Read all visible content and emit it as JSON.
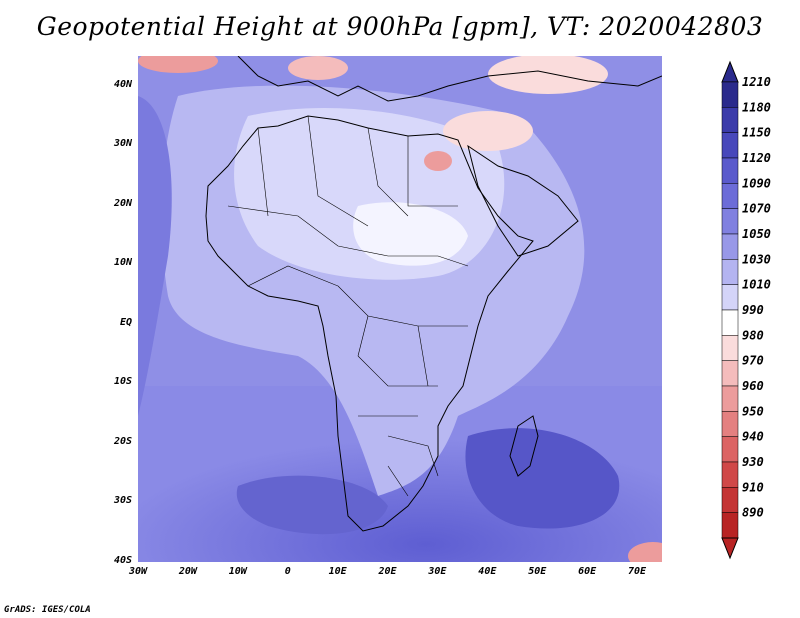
{
  "title": "Geopotential Height at 900hPa [gpm], VT: 2020042803",
  "footer": "GrADS: IGES/COLA",
  "axes": {
    "lat_labels": [
      "40N",
      "30N",
      "20N",
      "10N",
      "EQ",
      "10S",
      "20S",
      "30S",
      "40S"
    ],
    "lat_values": [
      40,
      30,
      20,
      10,
      0,
      -10,
      -20,
      -30,
      -40
    ],
    "lon_labels": [
      "30W",
      "20W",
      "10W",
      "0",
      "10E",
      "20E",
      "30E",
      "40E",
      "50E",
      "60E",
      "70E"
    ],
    "lon_values": [
      -30,
      -20,
      -10,
      0,
      10,
      20,
      30,
      40,
      50,
      60,
      70
    ],
    "lat_range": [
      -40,
      45
    ],
    "lon_range": [
      -30,
      75
    ]
  },
  "colorbar": {
    "levels": [
      "1210",
      "1180",
      "1150",
      "1120",
      "1090",
      "1070",
      "1050",
      "1030",
      "1010",
      "990",
      "980",
      "970",
      "960",
      "950",
      "940",
      "930",
      "910",
      "890"
    ],
    "colors": [
      "#2a2a8c",
      "#3b3baa",
      "#4848bb",
      "#5a5acc",
      "#6c6cd8",
      "#8080e0",
      "#9898e8",
      "#b4b4f0",
      "#d4d4f8",
      "#ffffff",
      "#fadcdc",
      "#f4bcbc",
      "#ec9c9c",
      "#e48080",
      "#dc6464",
      "#d04848",
      "#c43434",
      "#b82424"
    ]
  }
}
